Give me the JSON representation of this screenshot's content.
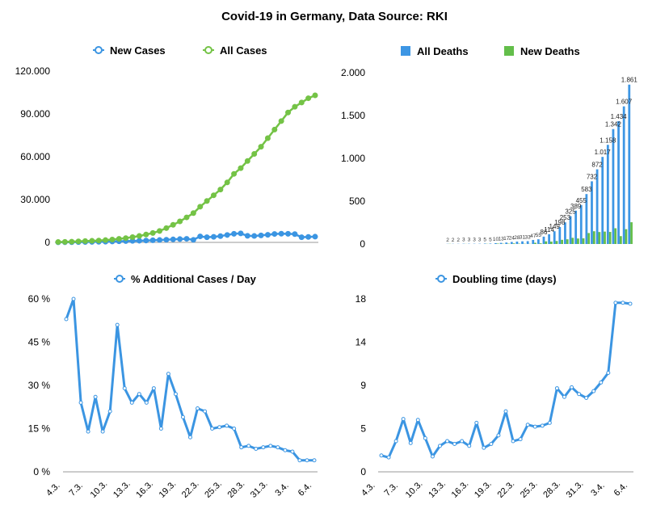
{
  "title": "Covid-19 in Germany, Data Source: RKI",
  "colors": {
    "blue": "#3b95e2",
    "green": "#74c346",
    "bar_blue": "#3d96e4",
    "bar_green": "#63be4a"
  },
  "chart_data": [
    {
      "id": "cases",
      "type": "line",
      "title": "",
      "xlabel": "",
      "ylabel": "",
      "legend_position": "top",
      "ylim": [
        0,
        120000
      ],
      "yticks": [
        0,
        30000,
        60000,
        90000,
        120000
      ],
      "ytick_labels": [
        "0",
        "30.000",
        "60.000",
        "90.000",
        "120.000"
      ],
      "series": [
        {
          "name": "New Cases",
          "color": "#3b95e2",
          "values": [
            60,
            100,
            150,
            200,
            260,
            330,
            400,
            500,
            620,
            760,
            900,
            1040,
            1160,
            1300,
            1480,
            1670,
            1870,
            2100,
            2300,
            2500,
            1800,
            4200,
            3600,
            3900,
            4400,
            5200,
            6000,
            6300,
            4600,
            4500,
            4900,
            5300,
            5900,
            6100,
            6000,
            5800,
            3600,
            3800,
            4000
          ]
        },
        {
          "name": "All Cases",
          "color": "#74c346",
          "values": [
            250,
            350,
            500,
            700,
            900,
            1100,
            1300,
            1600,
            2000,
            2500,
            3000,
            3700,
            4500,
            5500,
            6600,
            8000,
            10000,
            12300,
            14700,
            17500,
            20500,
            25000,
            29000,
            33000,
            37000,
            42000,
            48000,
            52000,
            57000,
            62000,
            67000,
            73000,
            79000,
            85000,
            91000,
            95000,
            98000,
            101000,
            103000
          ]
        }
      ]
    },
    {
      "id": "deaths",
      "type": "bar",
      "title": "",
      "xlabel": "",
      "ylabel": "",
      "legend_position": "top",
      "ylim": [
        0,
        2000
      ],
      "yticks": [
        0,
        500,
        1000,
        1500,
        2000
      ],
      "ytick_labels": [
        "0",
        "500",
        "1.000",
        "1.500",
        "2.000"
      ],
      "series": [
        {
          "name": "All Deaths",
          "color": "#3d96e4",
          "values": [
            0,
            0,
            0,
            0,
            0,
            0,
            0,
            0,
            0,
            0,
            0,
            0,
            0,
            0,
            2,
            2,
            2,
            3,
            3,
            3,
            3,
            5,
            5,
            10,
            13,
            17,
            24,
            28,
            31,
            33,
            47,
            55,
            86,
            114,
            149,
            198,
            253,
            325,
            389,
            455,
            583,
            732,
            872,
            1017,
            1158,
            1342,
            1434,
            1607,
            1861
          ],
          "labels": [
            "",
            "",
            "",
            "",
            "",
            "",
            "",
            "",
            "",
            "",
            "",
            "",
            "",
            "",
            "2",
            "2",
            "2",
            "3",
            "3",
            "3",
            "3",
            "5",
            "5",
            "10",
            "13",
            "17",
            "24",
            "28",
            "31",
            "33",
            "47",
            "55",
            "86",
            "114",
            "149",
            "198",
            "253",
            "325",
            "389",
            "455",
            "583",
            "732",
            "872",
            "1.017",
            "1.158",
            "1.342",
            "1.434",
            "1.607",
            "1.861"
          ]
        },
        {
          "name": "New Deaths",
          "color": "#63be4a",
          "values": [
            0,
            0,
            0,
            0,
            0,
            0,
            0,
            0,
            0,
            0,
            0,
            0,
            0,
            0,
            2,
            0,
            0,
            1,
            0,
            0,
            0,
            2,
            0,
            5,
            3,
            4,
            7,
            4,
            3,
            2,
            14,
            8,
            31,
            28,
            35,
            49,
            55,
            72,
            64,
            66,
            128,
            149,
            140,
            145,
            141,
            184,
            92,
            173,
            254
          ]
        }
      ]
    },
    {
      "id": "pct",
      "type": "line",
      "title": "",
      "xlabel": "",
      "ylabel": "",
      "legend_position": "top",
      "ylim": [
        0,
        60
      ],
      "yticks": [
        0,
        15,
        30,
        45,
        60
      ],
      "ytick_labels": [
        "0 %",
        "15 %",
        "30 %",
        "45 %",
        "60 %"
      ],
      "x_labels": [
        "4.3.",
        "7.3.",
        "10.3.",
        "13.3.",
        "16.3.",
        "19.3.",
        "22.3.",
        "25.3.",
        "28.3.",
        "31.3.",
        "3.4.",
        "6.4."
      ],
      "series": [
        {
          "name": "% Additional Cases / Day",
          "color": "#3b95e2",
          "values": [
            53,
            60,
            24,
            14,
            26,
            14,
            21,
            51,
            29,
            24,
            27,
            24,
            29,
            15,
            34,
            27,
            19,
            12,
            22,
            21,
            15,
            15.5,
            16,
            15,
            8.5,
            9,
            8,
            8.5,
            9,
            8.5,
            7.5,
            7,
            4,
            4,
            4
          ]
        }
      ]
    },
    {
      "id": "doubling",
      "type": "line",
      "title": "",
      "xlabel": "",
      "ylabel": "",
      "legend_position": "top",
      "ylim": [
        0,
        18
      ],
      "yticks": [
        0,
        4.5,
        9,
        13.5,
        18
      ],
      "ytick_labels": [
        "0",
        "5",
        "9",
        "14",
        "18"
      ],
      "x_labels": [
        "4.3.",
        "7.3.",
        "10.3.",
        "13.3.",
        "16.3.",
        "19.3.",
        "22.3.",
        "25.3.",
        "28.3.",
        "31.3.",
        "3.4.",
        "6.4."
      ],
      "series": [
        {
          "name": "Doubling time (days)",
          "color": "#3b95e2",
          "values": [
            1.7,
            1.5,
            3.2,
            5.5,
            3,
            5.4,
            3.5,
            1.6,
            2.7,
            3.2,
            2.9,
            3.2,
            2.7,
            5.1,
            2.5,
            2.9,
            3.8,
            6.3,
            3.2,
            3.4,
            4.9,
            4.7,
            4.8,
            5.1,
            8.7,
            7.8,
            8.8,
            8.1,
            7.7,
            8.4,
            9.3,
            10.3,
            17.6,
            17.6,
            17.5
          ]
        }
      ]
    }
  ]
}
